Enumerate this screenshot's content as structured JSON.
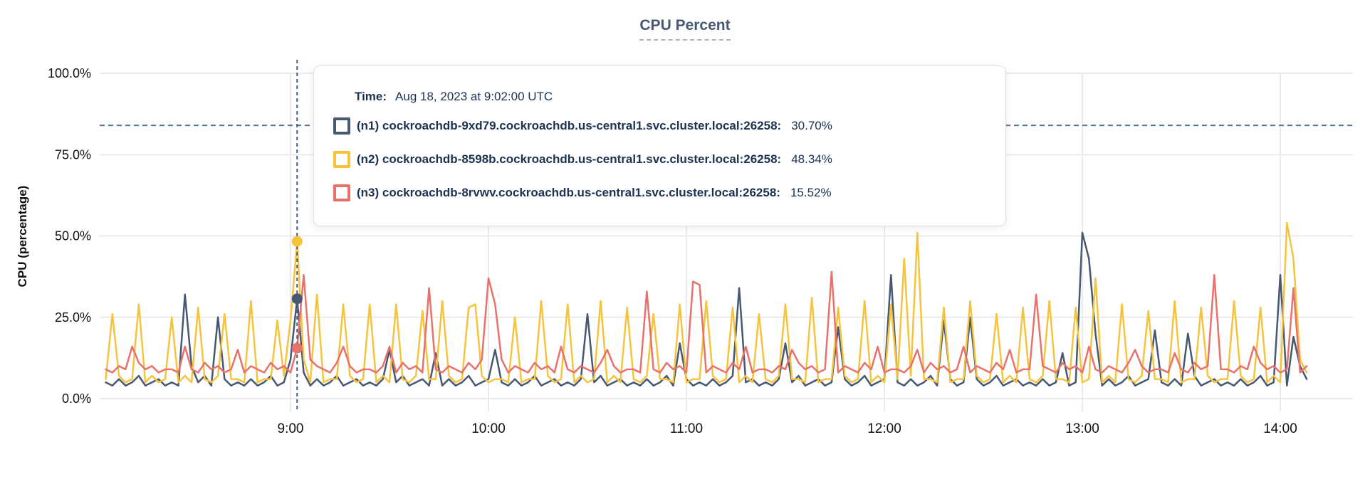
{
  "title": "CPU Percent",
  "y_axis": {
    "label": "CPU (percentage)",
    "ticks": [
      "0.0%",
      "25.0%",
      "50.0%",
      "75.0%",
      "100.0%"
    ]
  },
  "x_axis": {
    "ticks": [
      "9:00",
      "10:00",
      "11:00",
      "12:00",
      "13:00",
      "14:00"
    ]
  },
  "tooltip": {
    "time_label": "Time:",
    "time_value": "Aug 18, 2023 at 9:02:00 UTC",
    "rows": [
      {
        "name": "(n1) cockroachdb-9xd79.cockroachdb.us-central1.svc.cluster.local:26258:",
        "value": "30.70%",
        "color": "#475872"
      },
      {
        "name": "(n2) cockroachdb-8598b.cockroachdb.us-central1.svc.cluster.local:26258:",
        "value": "48.34%",
        "color": "#F5C33C"
      },
      {
        "name": "(n3) cockroachdb-8rvwv.cockroachdb.us-central1.svc.cluster.local:26258:",
        "value": "15.52%",
        "color": "#E8726B"
      }
    ]
  },
  "colors": {
    "grid": "#ebebeb",
    "axis_text": "#111111",
    "threshold_dash": "#5b7389",
    "hover_dash": "#46607a",
    "title": "#475872"
  },
  "chart_data": {
    "type": "line",
    "title": "CPU Percent",
    "xlabel": "",
    "ylabel": "CPU (percentage)",
    "ylim": [
      0,
      100
    ],
    "y_tick_percents": [
      0,
      25,
      50,
      75,
      100
    ],
    "x_tick_labels": [
      "9:00",
      "10:00",
      "11:00",
      "12:00",
      "13:00",
      "14:00"
    ],
    "x_tick_minutes": [
      540,
      600,
      660,
      720,
      780,
      840
    ],
    "threshold_percent": 84,
    "x_start_minute": 484,
    "x_step_minutes": 2,
    "hover": {
      "minute": 542,
      "time": "Aug 18, 2023 at 9:02:00 UTC",
      "values": [
        30.7,
        48.34,
        15.52
      ]
    },
    "series": [
      {
        "name": "(n1) cockroachdb-9xd79.cockroachdb.us-central1.svc.cluster.local:26258",
        "color": "#475872",
        "values": [
          5,
          4,
          6,
          4,
          5,
          7,
          4,
          5,
          6,
          4,
          5,
          4,
          32,
          10,
          5,
          7,
          4,
          25,
          6,
          4,
          5,
          4,
          6,
          4,
          5,
          7,
          4,
          5,
          12,
          30.7,
          8,
          4,
          6,
          4,
          5,
          7,
          4,
          5,
          6,
          4,
          5,
          4,
          6,
          15,
          5,
          7,
          4,
          5,
          6,
          4,
          14,
          4,
          6,
          4,
          5,
          7,
          4,
          5,
          6,
          15,
          5,
          4,
          6,
          4,
          5,
          7,
          4,
          5,
          6,
          4,
          5,
          4,
          6,
          26,
          5,
          7,
          4,
          5,
          6,
          4,
          5,
          4,
          6,
          4,
          5,
          7,
          4,
          17,
          6,
          4,
          5,
          4,
          6,
          4,
          5,
          7,
          34,
          5,
          6,
          4,
          5,
          4,
          6,
          17,
          5,
          7,
          4,
          5,
          6,
          4,
          5,
          22,
          6,
          4,
          5,
          7,
          4,
          5,
          6,
          38,
          5,
          4,
          6,
          4,
          5,
          7,
          4,
          24,
          6,
          4,
          5,
          25,
          6,
          4,
          5,
          7,
          4,
          5,
          6,
          4,
          5,
          4,
          6,
          4,
          5,
          14,
          4,
          5,
          51,
          43,
          20,
          4,
          6,
          4,
          5,
          7,
          4,
          5,
          6,
          21,
          5,
          4,
          6,
          4,
          20,
          7,
          4,
          5,
          6,
          4,
          5,
          4,
          6,
          4,
          5,
          7,
          4,
          5,
          38,
          4,
          19,
          10,
          6
        ]
      },
      {
        "name": "(n2) cockroachdb-8598b.cockroachdb.us-central1.svc.cluster.local:26258",
        "color": "#F5C33C",
        "values": [
          6,
          26,
          7,
          5,
          6,
          29,
          5,
          7,
          5,
          6,
          25,
          5,
          7,
          5,
          28,
          6,
          5,
          7,
          26,
          6,
          6,
          5,
          30,
          5,
          6,
          6,
          24,
          7,
          24,
          48.34,
          12,
          5,
          32,
          5,
          6,
          6,
          29,
          7,
          5,
          6,
          29,
          5,
          7,
          5,
          29,
          6,
          5,
          7,
          27,
          6,
          6,
          30,
          7,
          5,
          6,
          28,
          29,
          7,
          5,
          6,
          6,
          5,
          25,
          5,
          6,
          6,
          30,
          7,
          5,
          6,
          29,
          5,
          7,
          5,
          6,
          30,
          5,
          7,
          5,
          28,
          6,
          5,
          7,
          26,
          6,
          6,
          5,
          29,
          5,
          6,
          6,
          30,
          7,
          5,
          6,
          28,
          5,
          7,
          5,
          26,
          6,
          5,
          7,
          29,
          6,
          6,
          5,
          31,
          5,
          6,
          6,
          28,
          7,
          5,
          6,
          30,
          5,
          7,
          5,
          29,
          6,
          43,
          7,
          51,
          6,
          6,
          5,
          28,
          5,
          6,
          6,
          30,
          7,
          5,
          6,
          26,
          5,
          7,
          5,
          28,
          6,
          5,
          7,
          30,
          6,
          6,
          5,
          28,
          5,
          6,
          37,
          5,
          7,
          5,
          29,
          6,
          5,
          7,
          27,
          6,
          6,
          5,
          30,
          5,
          6,
          6,
          28,
          7,
          5,
          6,
          6,
          30,
          7,
          5,
          6,
          28,
          5,
          7,
          5,
          54,
          43,
          12,
          8
        ]
      },
      {
        "name": "(n3) cockroachdb-8rvwv.cockroachdb.us-central1.svc.cluster.local:26258",
        "color": "#E8726B",
        "values": [
          9,
          8,
          10,
          9,
          16,
          11,
          9,
          10,
          8,
          9,
          9,
          8,
          16,
          9,
          8,
          11,
          9,
          10,
          8,
          9,
          15,
          8,
          10,
          9,
          8,
          11,
          9,
          10,
          8,
          15.52,
          38,
          12,
          10,
          9,
          8,
          11,
          16,
          10,
          8,
          9,
          9,
          8,
          10,
          16,
          8,
          11,
          9,
          10,
          8,
          34,
          9,
          8,
          10,
          9,
          8,
          11,
          9,
          12,
          37,
          29,
          12,
          8,
          10,
          9,
          8,
          11,
          9,
          10,
          8,
          16,
          9,
          8,
          10,
          9,
          8,
          11,
          15,
          10,
          8,
          9,
          9,
          8,
          33,
          9,
          8,
          11,
          9,
          10,
          8,
          36,
          35,
          8,
          10,
          9,
          8,
          11,
          9,
          16,
          8,
          9,
          9,
          8,
          10,
          9,
          15,
          11,
          9,
          10,
          8,
          9,
          39,
          8,
          10,
          9,
          8,
          11,
          9,
          16,
          8,
          9,
          9,
          8,
          10,
          15,
          8,
          11,
          9,
          10,
          8,
          9,
          16,
          8,
          10,
          9,
          8,
          11,
          9,
          15,
          8,
          9,
          9,
          32,
          10,
          9,
          8,
          11,
          9,
          10,
          8,
          16,
          9,
          8,
          10,
          9,
          8,
          11,
          15,
          10,
          8,
          9,
          9,
          8,
          14,
          9,
          8,
          11,
          9,
          10,
          38,
          9,
          9,
          8,
          10,
          9,
          16,
          11,
          9,
          10,
          8,
          9,
          34,
          8,
          10
        ]
      }
    ]
  }
}
